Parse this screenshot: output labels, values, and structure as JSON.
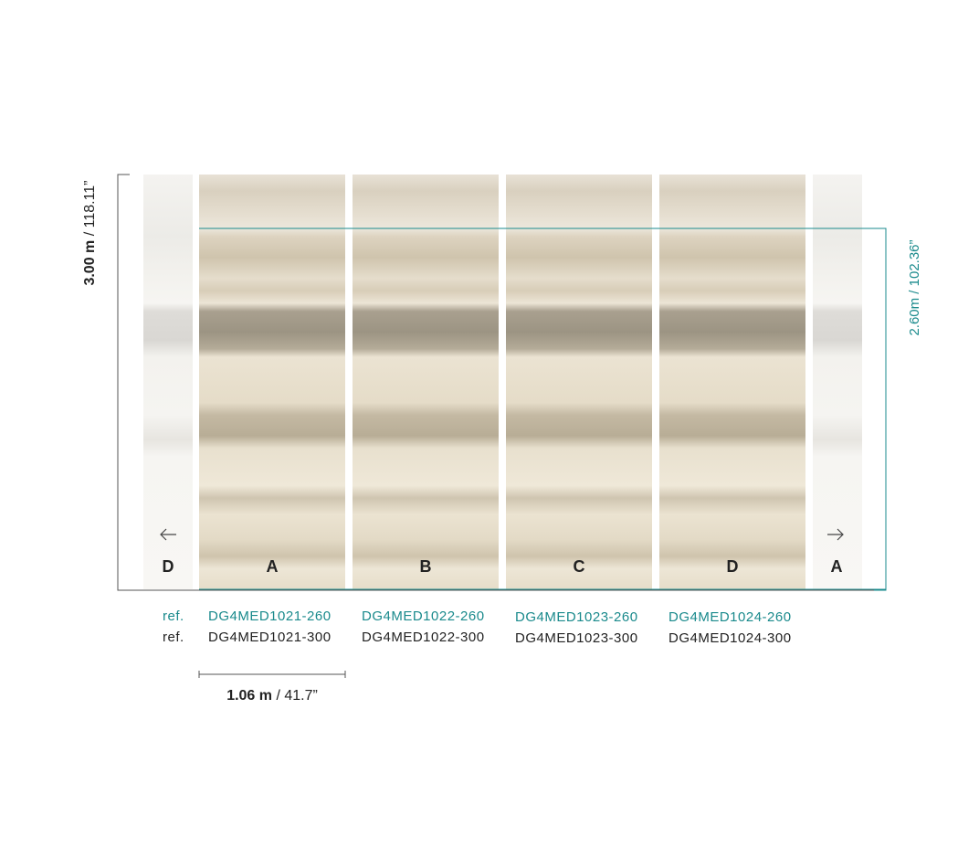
{
  "dimensions": {
    "height_total": {
      "metric": "3.00 m",
      "imperial": "/ 118.11”"
    },
    "height_visible": "2.60m / 102.36”",
    "panel_width": {
      "metric": "1.06 m",
      "imperial": "/ 41.7”"
    }
  },
  "edge_letters": [
    "D",
    "A"
  ],
  "ref_labels": [
    "ref.",
    "ref."
  ],
  "panels": [
    {
      "letter": "A",
      "ref_260": "DG4MED1021-260",
      "ref_300": "DG4MED1021-300"
    },
    {
      "letter": "B",
      "ref_260": "DG4MED1022-260",
      "ref_300": "DG4MED1022-300"
    },
    {
      "letter": "C",
      "ref_260": "DG4MED1023-260",
      "ref_300": "DG4MED1023-300"
    },
    {
      "letter": "D",
      "ref_260": "DG4MED1024-260",
      "ref_300": "DG4MED1024-300"
    }
  ]
}
